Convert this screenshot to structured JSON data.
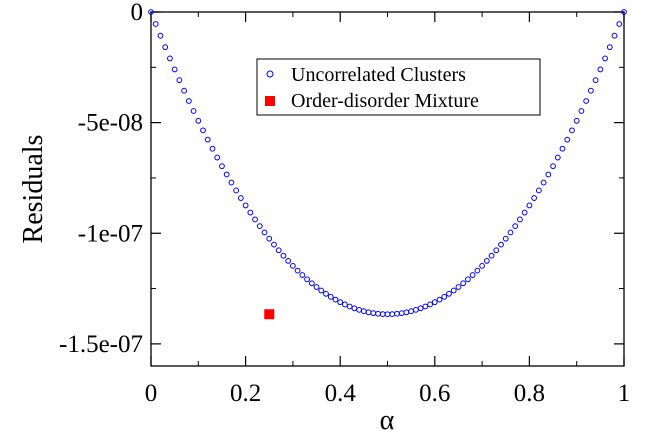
{
  "chart_data": {
    "type": "scatter",
    "title": "",
    "xlabel": "α",
    "ylabel": "Residuals",
    "xlim": [
      0,
      1
    ],
    "ylim": [
      -1.6e-07,
      0
    ],
    "grid": false,
    "legend_position": "top-right",
    "x_ticks": [
      0,
      0.2,
      0.4,
      0.6,
      0.8,
      1
    ],
    "x_tick_labels": [
      "0",
      "0.2",
      "0.4",
      "0.6",
      "0.8",
      "1"
    ],
    "y_ticks": [
      0,
      -5e-08,
      -1e-07,
      -1.5e-07
    ],
    "y_tick_labels": [
      "0",
      "-5e-08",
      "-1e-07",
      "-1.5e-07"
    ],
    "series": [
      {
        "name": "Uncorrelated Clusters",
        "marker": "open-circle",
        "color": "#0000ff",
        "curve": "parabola",
        "x_start": 0,
        "x_end": 1,
        "x_step": 0.01,
        "y_min": -1.366e-07,
        "y_min_at_x": 0.5
      },
      {
        "name": "Order-disorder Mixture",
        "marker": "filled-square",
        "color": "#ff0000",
        "points": [
          {
            "x": 0.25,
            "y": -1.366e-07
          }
        ]
      }
    ]
  }
}
